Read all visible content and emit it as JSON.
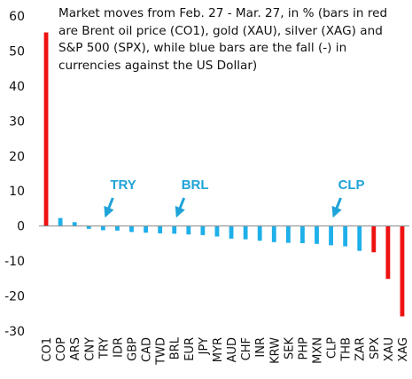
{
  "chart_data": {
    "type": "bar",
    "title": "Market moves from Feb. 27 - Mar. 27, in % (bars in red are Brent oil price (CO1), gold (XAU), silver (XAG) and S&P 500 (SPX), while blue bars are the fall (-) in currencies against the US Dollar)",
    "xlabel": "",
    "ylabel": "",
    "ylim": [
      -30,
      60
    ],
    "yticks": [
      60,
      50,
      40,
      30,
      20,
      10,
      0,
      -10,
      -20,
      -30
    ],
    "grid": false,
    "legend": "none",
    "categories": [
      "CO1",
      "COP",
      "ARS",
      "CNY",
      "TRY",
      "IDR",
      "GBP",
      "CAD",
      "TWD",
      "BRL",
      "EUR",
      "JPY",
      "MYR",
      "AUD",
      "CHF",
      "INR",
      "KRW",
      "SEK",
      "PHP",
      "MXN",
      "CLP",
      "THB",
      "ZAR",
      "SPX",
      "XAU",
      "XAG"
    ],
    "values": [
      55.3,
      2.3,
      1.1,
      -0.8,
      -1.2,
      -1.3,
      -1.7,
      -1.9,
      -2.1,
      -2.2,
      -2.4,
      -2.6,
      -3.0,
      -3.6,
      -3.8,
      -4.2,
      -4.6,
      -4.8,
      -4.9,
      -5.1,
      -5.5,
      -5.8,
      -7.1,
      -7.5,
      -15.1,
      -25.8
    ],
    "highlight": [
      "CO1",
      "SPX",
      "XAU",
      "XAG"
    ],
    "annotations": [
      {
        "text": "TRY",
        "target": "TRY"
      },
      {
        "text": "BRL",
        "target": "BRL"
      },
      {
        "text": "CLP",
        "target": "CLP"
      }
    ],
    "colors": {
      "red": "#ee1111",
      "blue": "#1eb0ea",
      "annotation": "#1fa3d8",
      "axis": "#888888"
    }
  }
}
